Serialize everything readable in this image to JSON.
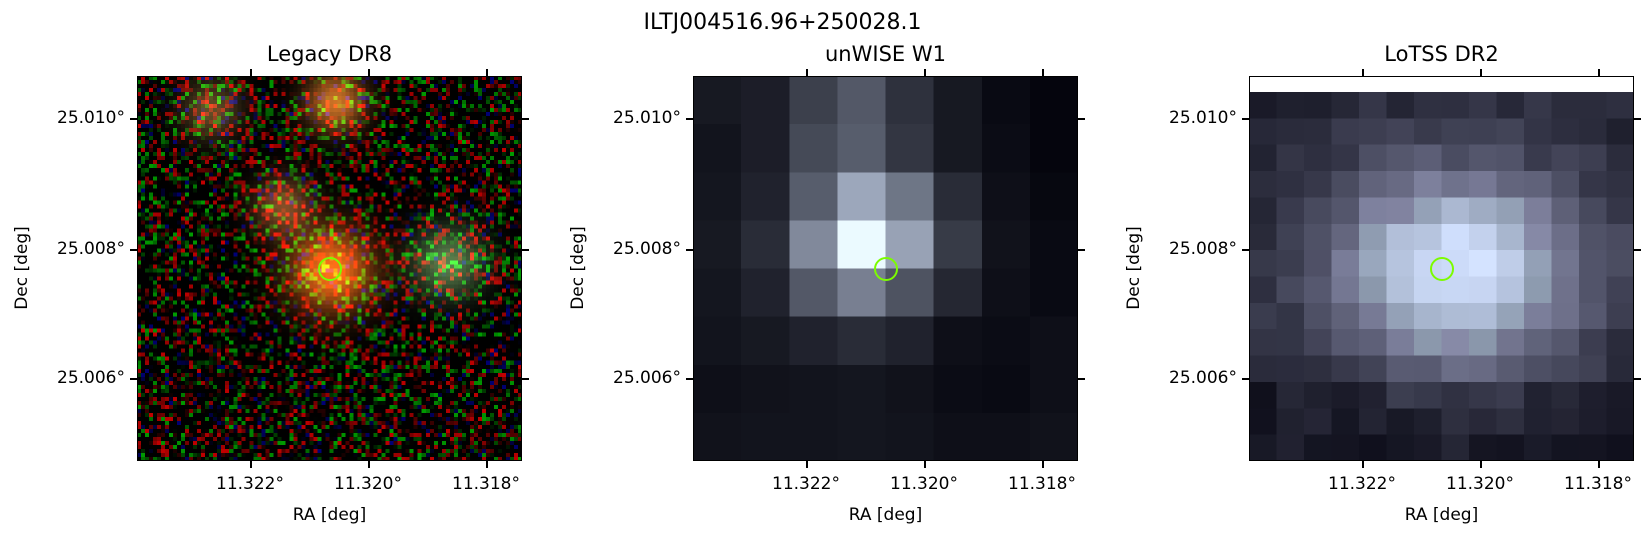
{
  "figure": {
    "title": "ILTJ004516.96+250028.1",
    "marker_color": "#7cfc00"
  },
  "panels": [
    {
      "title": "Legacy DR8",
      "style": "rgb-noise",
      "xlabel": "RA [deg]",
      "ylabel": "Dec [deg]",
      "xticks": [
        "11.322°",
        "11.320°",
        "11.318°"
      ],
      "yticks": [
        "25.010°",
        "25.008°",
        "25.006°"
      ]
    },
    {
      "title": "unWISE W1",
      "style": "gray-blocks",
      "xlabel": "RA [deg]",
      "ylabel": "Dec [deg]",
      "xticks": [
        "11.322°",
        "11.320°",
        "11.318°"
      ],
      "yticks": [
        "25.010°",
        "25.008°",
        "25.006°"
      ]
    },
    {
      "title": "LoTSS DR2",
      "style": "gray-blocks-fine",
      "xlabel": "RA [deg]",
      "ylabel": "Dec [deg]",
      "xticks": [
        "11.322°",
        "11.320°",
        "11.318°"
      ],
      "yticks": [
        "25.010°",
        "25.008°",
        "25.006°"
      ]
    }
  ]
}
